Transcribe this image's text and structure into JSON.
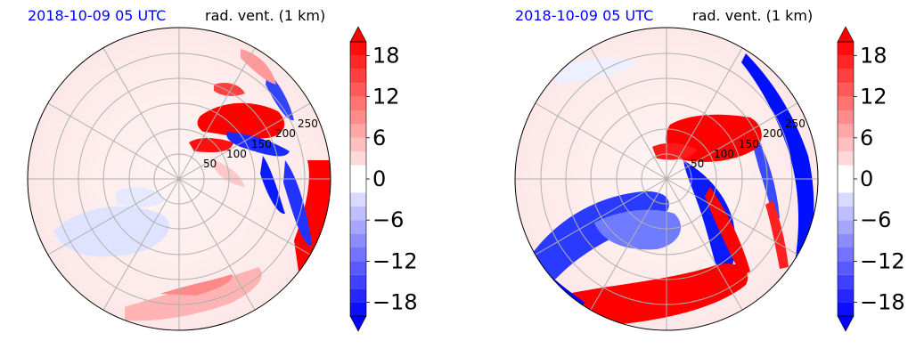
{
  "chart_data": [
    {
      "type": "heatmap",
      "subtype": "polar doppler radial velocity",
      "title_left": "2018-10-09 05 UTC",
      "title_right": "rad. vent. (1 km)",
      "ring_labels": [
        "50",
        "100",
        "150",
        "200",
        "250"
      ],
      "radial_lines_deg": [
        0,
        30,
        60,
        90,
        120,
        150,
        180,
        210,
        240,
        270,
        300,
        330
      ],
      "colorbar": {
        "ticks": [
          "18",
          "12",
          "6",
          "0",
          "−6",
          "−12",
          "−18"
        ],
        "range": [
          -20,
          20
        ],
        "extend": "both",
        "colors": {
          "positive": "#ff0000",
          "negative": "#0000ff",
          "zero": "#ffffff"
        }
      }
    },
    {
      "type": "heatmap",
      "subtype": "polar doppler radial velocity",
      "title_left": "2018-10-09 05 UTC",
      "title_right": "rad. vent. (1 km)",
      "ring_labels": [
        "50",
        "100",
        "150",
        "200",
        "250"
      ],
      "radial_lines_deg": [
        0,
        30,
        60,
        90,
        120,
        150,
        180,
        210,
        240,
        270,
        300,
        330
      ],
      "colorbar": {
        "ticks": [
          "18",
          "12",
          "6",
          "0",
          "−6",
          "−12",
          "−18"
        ],
        "range": [
          -20,
          20
        ],
        "extend": "both",
        "colors": {
          "positive": "#ff0000",
          "negative": "#0000ff",
          "zero": "#ffffff"
        }
      }
    }
  ]
}
